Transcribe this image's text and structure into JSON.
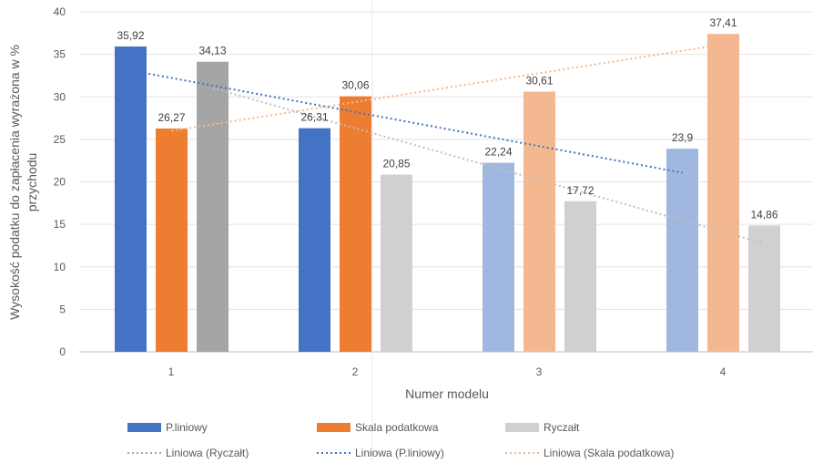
{
  "chart_data": {
    "type": "bar",
    "xlabel": "Numer modelu",
    "ylabel": "Wysokość podatku do zapłacenia wyrażona w % przychodu",
    "ylabel_lines": [
      "Wysokość podatku do zapłacenia wyrażona w %",
      "przychodu"
    ],
    "categories": [
      "1",
      "2",
      "3",
      "4"
    ],
    "ylim": [
      0,
      40
    ],
    "yticks": [
      "0",
      "5",
      "10",
      "15",
      "20",
      "25",
      "30",
      "35",
      "40"
    ],
    "grid": true,
    "legend_position": "bottom",
    "series": [
      {
        "name": "P.liniowy",
        "values": [
          35.92,
          26.31,
          22.24,
          23.9
        ],
        "labels": [
          "35,92",
          "26,31",
          "22,24",
          "23,9"
        ],
        "colors": [
          "#4472C4",
          "#4472C4",
          "#A0B8E0",
          "#A0B8E0"
        ]
      },
      {
        "name": "Skala podatkowa",
        "values": [
          26.27,
          30.06,
          30.61,
          37.41
        ],
        "labels": [
          "26,27",
          "30,06",
          "30,61",
          "37,41"
        ],
        "colors": [
          "#ED7D31",
          "#ED7D31",
          "#F4B891",
          "#F4B891"
        ]
      },
      {
        "name": "Ryczałt",
        "values": [
          34.13,
          20.85,
          17.72,
          14.86
        ],
        "labels": [
          "34,13",
          "20,85",
          "17,72",
          "14,86"
        ],
        "colors": [
          "#A5A5A5",
          "#D0D0D0",
          "#D0D0D0",
          "#D0D0D0"
        ]
      }
    ],
    "trendlines": [
      {
        "name": "Liniowa (Ryczałt)",
        "series": "Ryczałt",
        "color": "#BFBFBF",
        "style": "dotted"
      },
      {
        "name": "Liniowa (P.liniowy)",
        "series": "P.liniowy",
        "color": "#4472C4",
        "style": "dotted"
      },
      {
        "name": "Liniowa (Skala podatkowa)",
        "series": "Skala podatkowa",
        "color": "#F4B891",
        "style": "dotted"
      }
    ],
    "legend": [
      {
        "label": "P.liniowy",
        "kind": "bar",
        "color": "#4472C4"
      },
      {
        "label": "Skala podatkowa",
        "kind": "bar",
        "color": "#ED7D31"
      },
      {
        "label": "Ryczałt",
        "kind": "bar",
        "color": "#D0D0D0"
      },
      {
        "label": "Liniowa (Ryczałt)",
        "kind": "line",
        "color": "#A5A5A5"
      },
      {
        "label": "Liniowa (P.liniowy)",
        "kind": "line",
        "color": "#4472C4"
      },
      {
        "label": "Liniowa (Skala podatkowa)",
        "kind": "line",
        "color": "#F4B891"
      }
    ],
    "colors": {
      "grid": "#E3E3E3",
      "axis": "#BFBFBF",
      "divider": "#E8E8E8"
    }
  }
}
